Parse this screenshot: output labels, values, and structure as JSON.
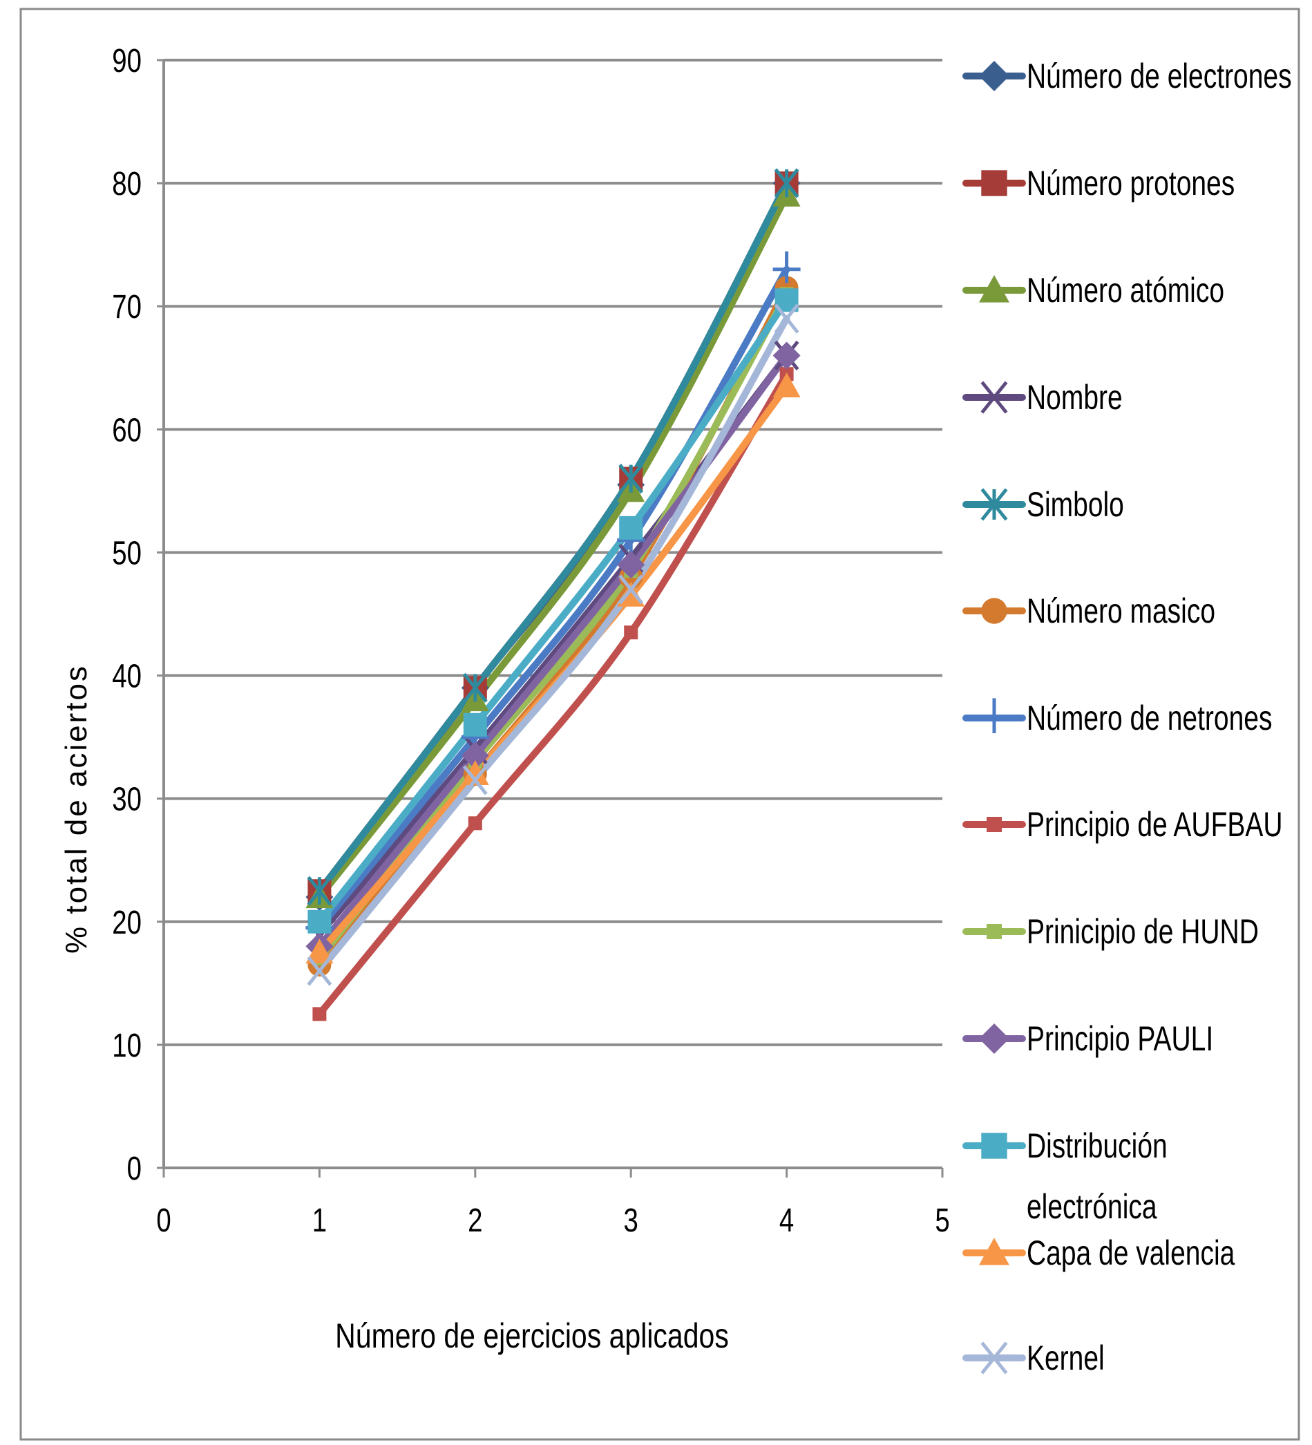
{
  "chart_data": {
    "type": "line",
    "title": "",
    "xlabel": "Número de ejercicios aplicados",
    "ylabel": "% total de aciertos",
    "xlim": [
      0,
      5
    ],
    "ylim": [
      0,
      90
    ],
    "x_ticks": [
      "0",
      "1",
      "2",
      "3",
      "4",
      "5"
    ],
    "y_ticks": [
      "0",
      "10",
      "20",
      "30",
      "40",
      "50",
      "60",
      "70",
      "80",
      "90"
    ],
    "grid": "horizontal",
    "legend_position": "right",
    "x": [
      1,
      2,
      3,
      4
    ],
    "series": [
      {
        "name": "Número de electrones",
        "color": "#3A5F8F",
        "marker": "diamond",
        "values": [
          22,
          39,
          55.5,
          80
        ]
      },
      {
        "name": "Número protones",
        "color": "#A63C38",
        "marker": "square",
        "values": [
          22.5,
          39,
          56,
          80
        ]
      },
      {
        "name": "Número atómico",
        "color": "#7A9A3A",
        "marker": "triangle",
        "values": [
          22,
          38,
          55,
          79
        ]
      },
      {
        "name": "Nombre",
        "color": "#5E4A7E",
        "marker": "x",
        "values": [
          19,
          34,
          49.5,
          66
        ]
      },
      {
        "name": "Simbolo",
        "color": "#2F8A9E",
        "marker": "star",
        "values": [
          22.5,
          39,
          56,
          80
        ]
      },
      {
        "name": "Número masico",
        "color": "#D47A2E",
        "marker": "circle",
        "values": [
          16.5,
          32,
          48,
          71.5
        ]
      },
      {
        "name": "Número de netrones",
        "color": "#4A7BC4",
        "marker": "plus",
        "values": [
          19.5,
          35,
          51,
          73
        ]
      },
      {
        "name": "Principio de AUFBAU",
        "color": "#C0504D",
        "marker": "dash",
        "values": [
          12.5,
          28,
          43.5,
          64.5
        ]
      },
      {
        "name": "Prinicipio de HUND",
        "color": "#9BBB59",
        "marker": "dash",
        "values": [
          17,
          33,
          48.5,
          71
        ]
      },
      {
        "name": "Principio PAULI",
        "color": "#8064A2",
        "marker": "diamond",
        "values": [
          18,
          33.5,
          49,
          66
        ]
      },
      {
        "name": "Distribución electrónica",
        "color": "#4BACC6",
        "marker": "square",
        "values": [
          20,
          36,
          52,
          70.5
        ]
      },
      {
        "name": "Capa de valencia",
        "color": "#F79646",
        "marker": "triangle",
        "values": [
          17.5,
          32,
          46.5,
          63.5
        ]
      },
      {
        "name": "Kernel",
        "color": "#A5B7D8",
        "marker": "x",
        "values": [
          16,
          31.5,
          47,
          69
        ]
      }
    ],
    "legend_label_lines": {
      "Distribución electrónica": [
        "Distribución",
        "electrónica"
      ]
    }
  }
}
